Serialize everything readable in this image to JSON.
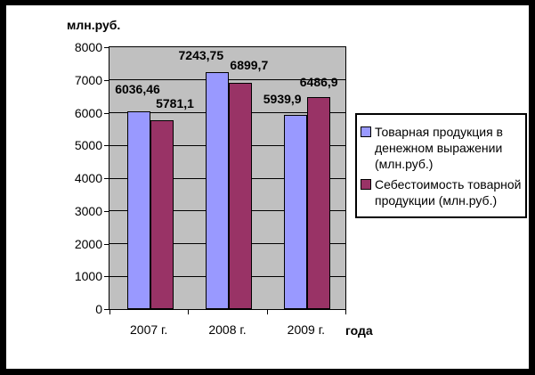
{
  "chart_data": {
    "type": "bar",
    "title": "млн.руб.",
    "xlabel": "года",
    "categories": [
      "2007 г.",
      "2008 г.",
      "2009 г."
    ],
    "series": [
      {
        "name": "Товарная продукция в денежном выражении (млн.руб.)",
        "color": "#9999FF",
        "values": [
          6036.46,
          7243.75,
          5939.9
        ],
        "labels": [
          "6036,46",
          "7243,75",
          "5939,9"
        ]
      },
      {
        "name": "Себестоимость товарной продукции (млн.руб.)",
        "color": "#993366",
        "values": [
          5781.1,
          6899.7,
          6486.9
        ],
        "labels": [
          "5781,1",
          "6899,7",
          "6486,9"
        ]
      }
    ],
    "ylim": [
      0,
      8000
    ],
    "y_ticks": [
      0,
      1000,
      2000,
      3000,
      4000,
      5000,
      6000,
      7000,
      8000
    ],
    "plot_bg": "#C0C0C0",
    "grid": true,
    "legend_position": "right",
    "colors": {
      "frame": "#000000",
      "background": "#FFFFFF",
      "axis": "#000000"
    }
  }
}
